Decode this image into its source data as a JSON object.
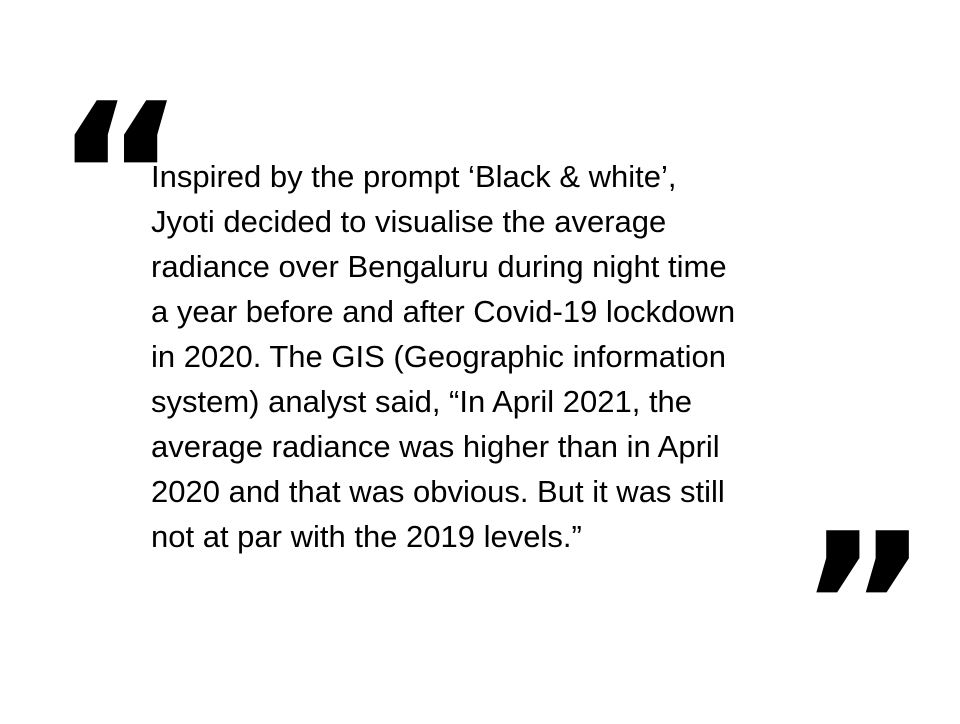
{
  "quote": {
    "open_mark": "“",
    "close_mark": "”",
    "lines": [
      "Inspired by the prompt ‘Black & white’,",
      "Jyoti decided to visualise the average",
      "radiance over Bengaluru during night time",
      "a year before and after Covid-19 lockdown",
      "in 2020. The GIS (Geographic information",
      "system) analyst said, “In April 2021, the",
      "average radiance was higher than in April",
      "2020 and that was obvious. But it was still",
      "not at par with the 2019 levels.”"
    ]
  }
}
